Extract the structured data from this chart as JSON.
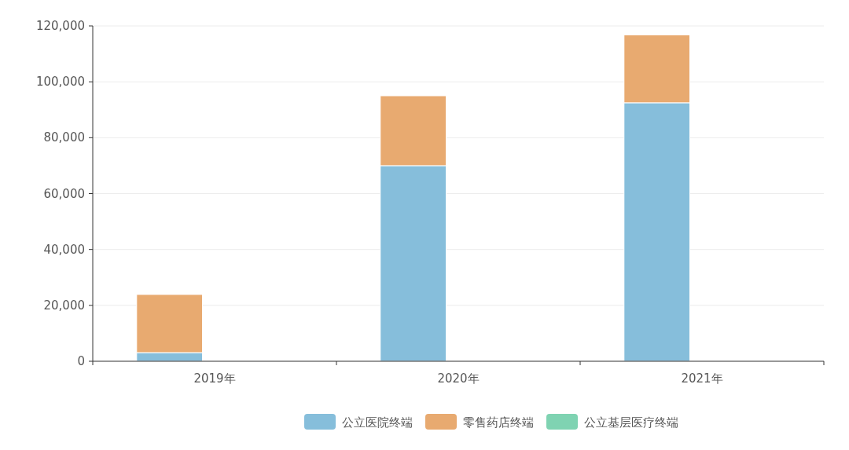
{
  "chart_data": {
    "type": "bar",
    "stacked": true,
    "categories": [
      "2019年",
      "2020年",
      "2021年"
    ],
    "series": [
      {
        "name": "公立医院终端",
        "color": "#86bedb",
        "values": [
          3100,
          70000,
          92500
        ]
      },
      {
        "name": "零售药店终端",
        "color": "#e8aa70",
        "values": [
          20800,
          25000,
          24300
        ]
      },
      {
        "name": "公立基层医疗终端",
        "color": "#7fd3b2",
        "values": [
          null,
          null,
          null
        ]
      }
    ],
    "ylim": [
      0,
      120000
    ],
    "yticks": [
      {
        "value": 0,
        "label": "0"
      },
      {
        "value": 20000,
        "label": "20,000"
      },
      {
        "value": 40000,
        "label": "40,000"
      },
      {
        "value": 60000,
        "label": "60,000"
      },
      {
        "value": 80000,
        "label": "80,000"
      },
      {
        "value": 100000,
        "label": "100,000"
      },
      {
        "value": 120000,
        "label": "120,000"
      }
    ],
    "grid": "y",
    "legend": "bottom"
  }
}
